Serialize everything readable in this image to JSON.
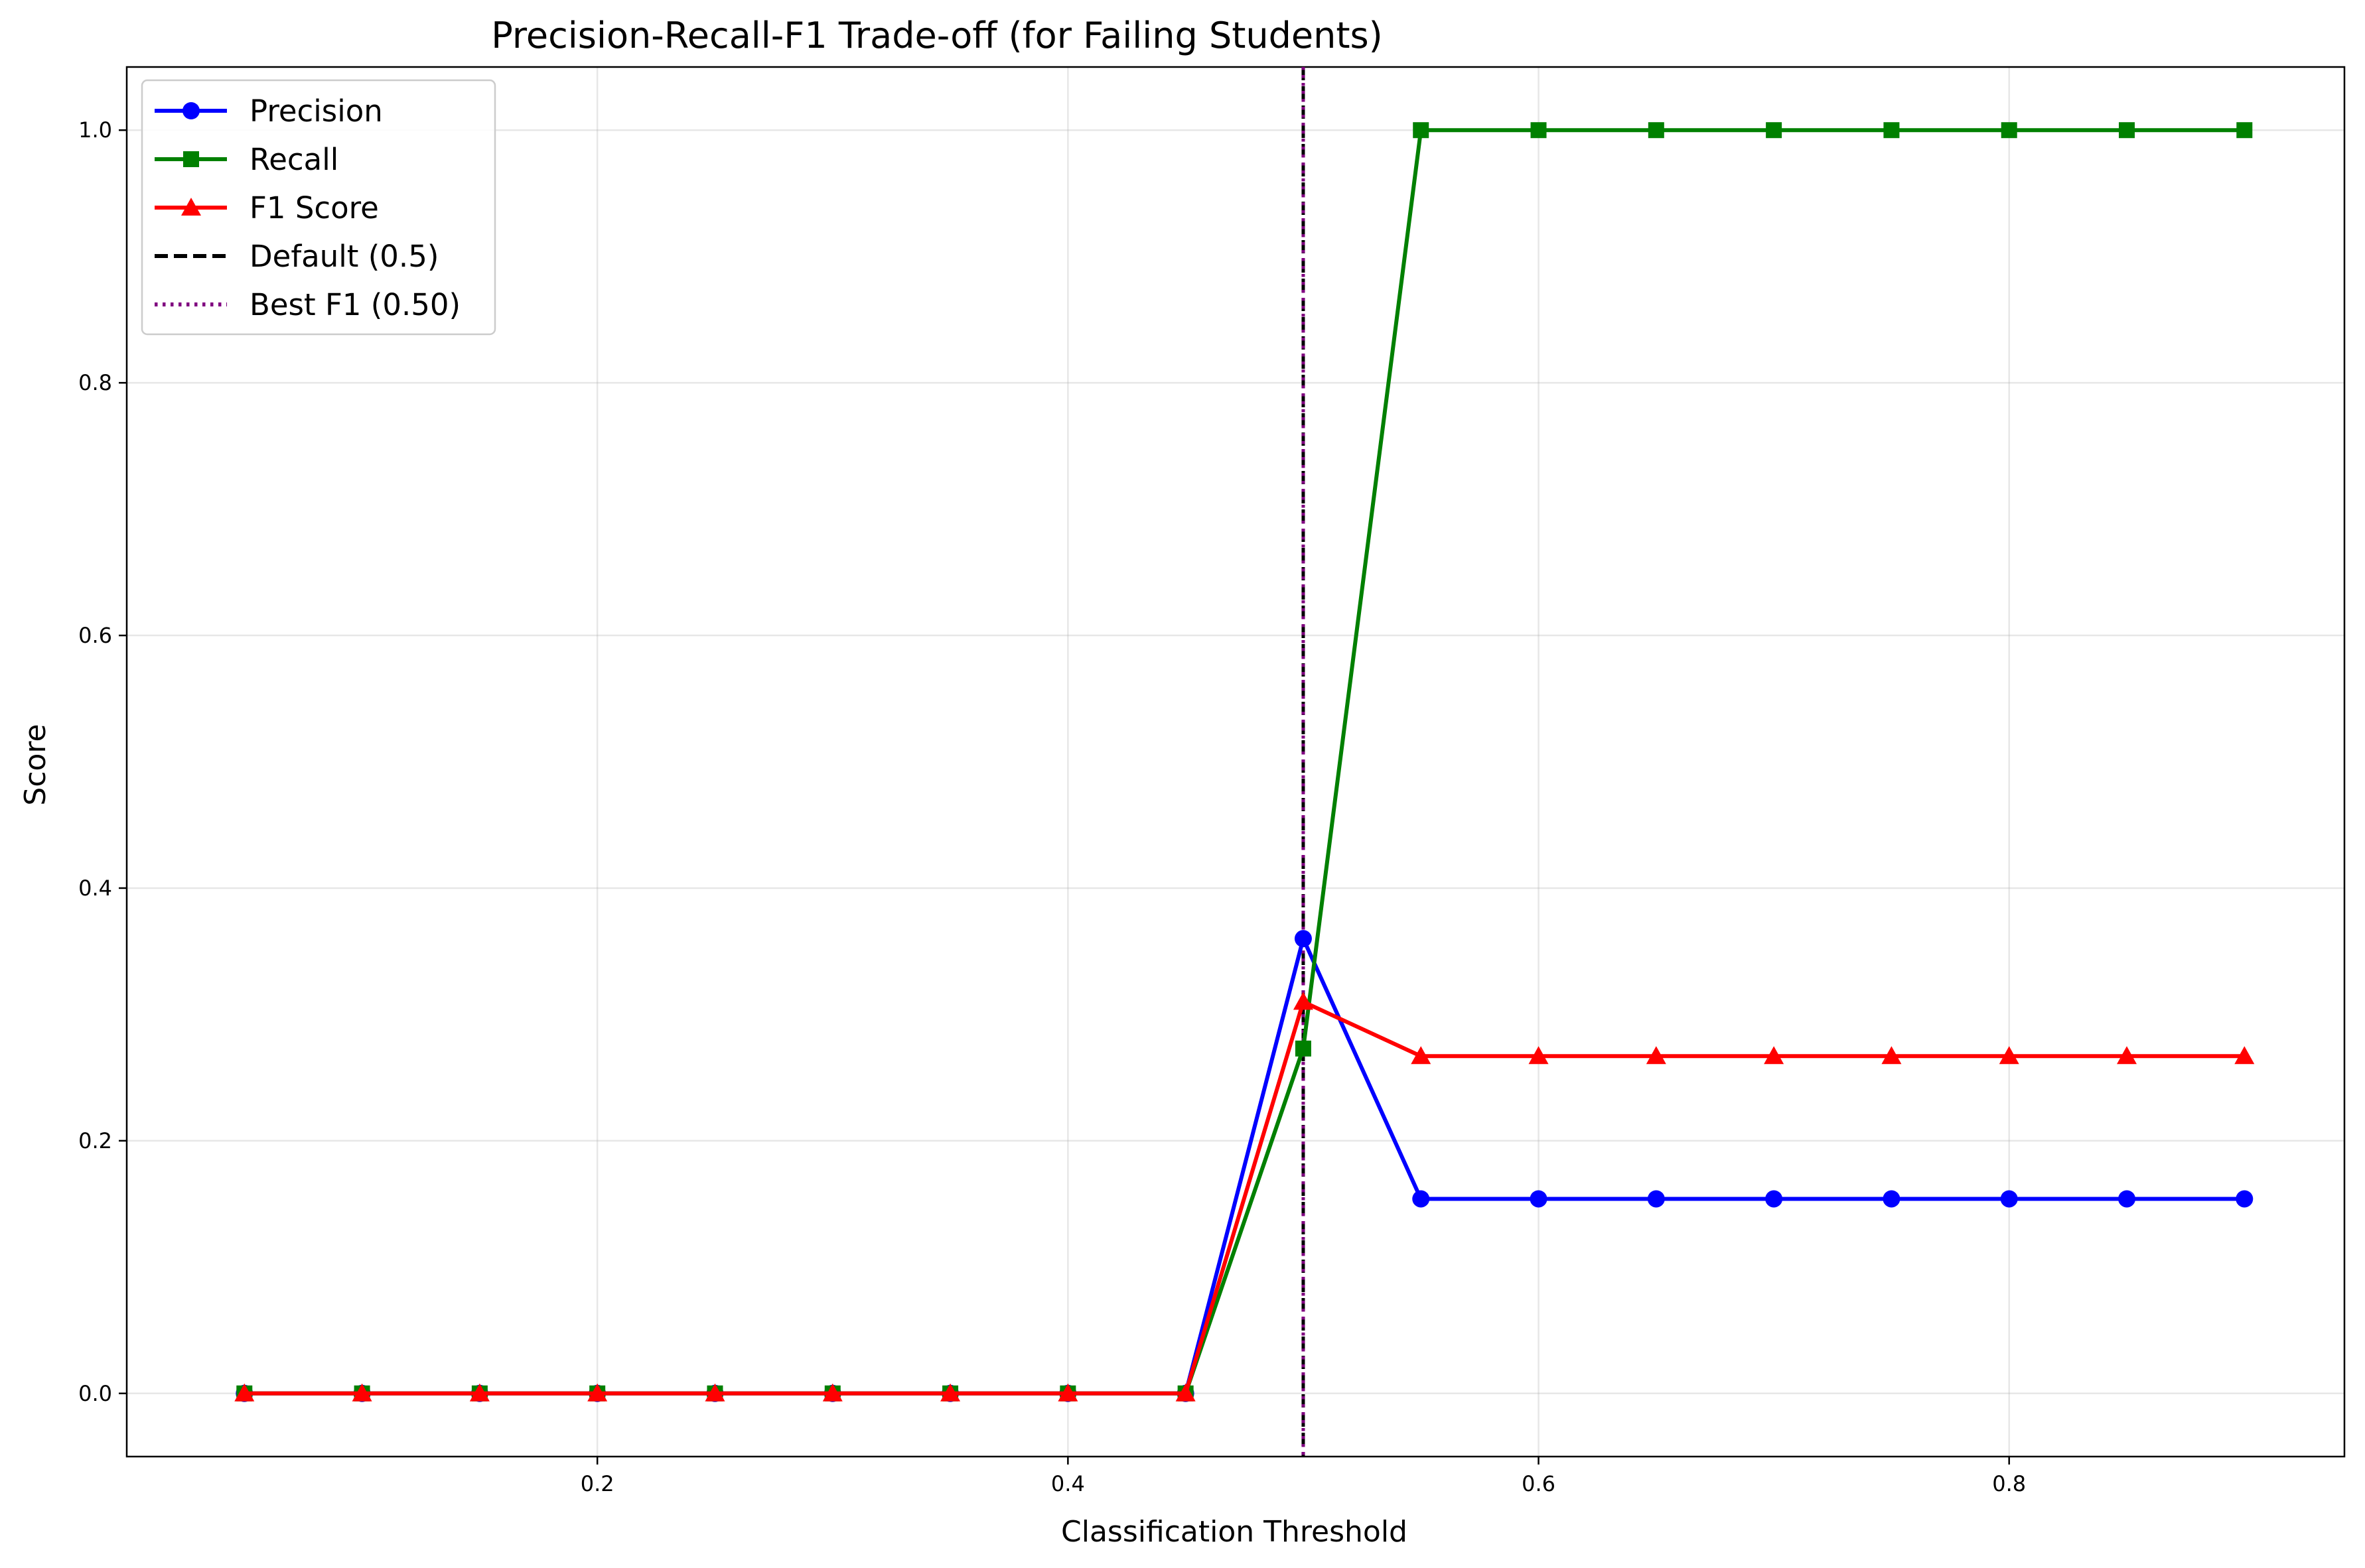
{
  "chart_data": {
    "type": "line",
    "title": "Precision-Recall-F1 Trade-off (for Failing Students)",
    "xlabel": "Classification Threshold",
    "ylabel": "Score",
    "xlim": [
      0.0,
      0.9425
    ],
    "ylim": [
      -0.05,
      1.05
    ],
    "xticks": [
      0.2,
      0.4,
      0.6,
      0.8
    ],
    "yticks": [
      0.0,
      0.2,
      0.4,
      0.6,
      0.8,
      1.0
    ],
    "xtick_labels": [
      "0.2",
      "0.4",
      "0.6",
      "0.8"
    ],
    "ytick_labels": [
      "0.0",
      "0.2",
      "0.4",
      "0.6",
      "0.8",
      "1.0"
    ],
    "grid": true,
    "legend_position": "top-left",
    "x": [
      0.05,
      0.1,
      0.15,
      0.2,
      0.25,
      0.3,
      0.35,
      0.4,
      0.45,
      0.5,
      0.55,
      0.6,
      0.65,
      0.7,
      0.75,
      0.8,
      0.85,
      0.9
    ],
    "series": [
      {
        "name": "Precision",
        "color": "#0000ff",
        "marker": "circle",
        "values": [
          0,
          0,
          0,
          0,
          0,
          0,
          0,
          0,
          0,
          0.36,
          0.154,
          0.154,
          0.154,
          0.154,
          0.154,
          0.154,
          0.154,
          0.154
        ]
      },
      {
        "name": "Recall",
        "color": "#008000",
        "marker": "square",
        "values": [
          0,
          0,
          0,
          0,
          0,
          0,
          0,
          0,
          0,
          0.273,
          1.0,
          1.0,
          1.0,
          1.0,
          1.0,
          1.0,
          1.0,
          1.0
        ]
      },
      {
        "name": "F1 Score",
        "color": "#ff0000",
        "marker": "triangle",
        "values": [
          0,
          0,
          0,
          0,
          0,
          0,
          0,
          0,
          0,
          0.31,
          0.267,
          0.267,
          0.267,
          0.267,
          0.267,
          0.267,
          0.267,
          0.267
        ]
      }
    ],
    "vlines": [
      {
        "name": "Default (0.5)",
        "x": 0.5,
        "color": "#000000",
        "style": "dashed"
      },
      {
        "name": "Best F1 (0.50)",
        "x": 0.5,
        "color": "#800080",
        "style": "dotted"
      }
    ]
  }
}
